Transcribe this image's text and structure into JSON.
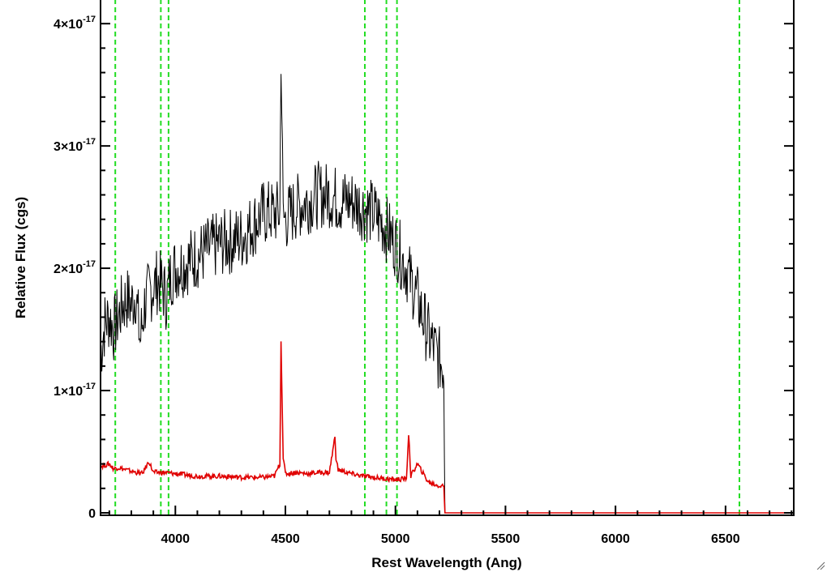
{
  "chart_data": {
    "type": "line",
    "xlabel": "Rest Wavelength (Ang)",
    "ylabel": "Relative Flux (cgs)",
    "xlim": [
      3660,
      6810
    ],
    "ylim": [
      -2e-19,
      4.2e-17
    ],
    "xticks": [
      {
        "value": 4000,
        "label": "4000"
      },
      {
        "value": 4500,
        "label": "4500"
      },
      {
        "value": 5000,
        "label": "5000"
      },
      {
        "value": 5500,
        "label": "5500"
      },
      {
        "value": 6000,
        "label": "6000"
      },
      {
        "value": 6500,
        "label": "6500"
      }
    ],
    "yticks": [
      {
        "value": 0,
        "mantissa": "0",
        "exponent": ""
      },
      {
        "value": 1e-17,
        "mantissa": "1×10",
        "exponent": "-17"
      },
      {
        "value": 2e-17,
        "mantissa": "2×10",
        "exponent": "-17"
      },
      {
        "value": 3e-17,
        "mantissa": "3×10",
        "exponent": "-17"
      },
      {
        "value": 4e-17,
        "mantissa": "4×10",
        "exponent": "-17"
      }
    ],
    "vlines": [
      3727,
      3934,
      3969,
      4861,
      4959,
      5007,
      6563
    ],
    "series": [
      {
        "color": "#000000",
        "x": [
          3660,
          3680,
          3700,
          3720,
          3740,
          3760,
          3780,
          3800,
          3820,
          3840,
          3860,
          3880,
          3900,
          3920,
          3940,
          3960,
          3980,
          4000,
          4050,
          4100,
          4150,
          4200,
          4250,
          4300,
          4350,
          4400,
          4450,
          4475,
          4480,
          4490,
          4500,
          4550,
          4600,
          4650,
          4700,
          4750,
          4800,
          4850,
          4900,
          4950,
          5000,
          5050,
          5100,
          5150,
          5200,
          5220,
          5225,
          6810
        ],
        "y": [
          1.3e-17,
          1.55e-17,
          1.6e-17,
          1.5e-17,
          1.6e-17,
          1.7e-17,
          1.75e-17,
          1.7e-17,
          1.8e-17,
          1.4e-17,
          1.7e-17,
          1.8e-17,
          1.85e-17,
          1.9e-17,
          1.85e-17,
          1.75e-17,
          1.95e-17,
          2e-17,
          2.05e-17,
          2.1e-17,
          2.15e-17,
          2.2e-17,
          2.22e-17,
          2.25e-17,
          2.35e-17,
          2.45e-17,
          2.45e-17,
          2.45e-17,
          3.8e-17,
          2.4e-17,
          2.4e-17,
          2.5e-17,
          2.55e-17,
          2.6e-17,
          2.6e-17,
          2.55e-17,
          2.55e-17,
          2.5e-17,
          2.45e-17,
          2.35e-17,
          2.2e-17,
          2e-17,
          1.75e-17,
          1.45e-17,
          1.25e-17,
          1.2e-17,
          0,
          0
        ]
      },
      {
        "color": "#e00000",
        "x": [
          3660,
          3700,
          3720,
          3740,
          3760,
          3800,
          3850,
          3880,
          3900,
          3950,
          4000,
          4050,
          4100,
          4200,
          4300,
          4400,
          4450,
          4475,
          4480,
          4490,
          4500,
          4550,
          4600,
          4650,
          4700,
          4725,
          4730,
          4740,
          4800,
          4850,
          4900,
          4950,
          5000,
          5050,
          5060,
          5070,
          5100,
          5150,
          5200,
          5220,
          5225,
          6810
        ],
        "y": [
          3.8e-18,
          4e-18,
          3.6e-18,
          3.7e-18,
          3.6e-18,
          3.4e-18,
          3.2e-18,
          4.2e-18,
          3.3e-18,
          3.3e-18,
          3.2e-18,
          3.1e-18,
          3e-18,
          3e-18,
          2.9e-18,
          2.9e-18,
          3e-18,
          4e-18,
          1.4e-17,
          4.5e-18,
          3.2e-18,
          3.3e-18,
          3.2e-18,
          3.3e-18,
          3.3e-18,
          6.2e-18,
          4.5e-18,
          3.5e-18,
          3.2e-18,
          3e-18,
          2.9e-18,
          2.8e-18,
          2.7e-18,
          2.8e-18,
          6.5e-18,
          3e-18,
          4e-18,
          2.5e-18,
          2.2e-18,
          2.2e-18,
          0,
          0
        ]
      }
    ]
  }
}
